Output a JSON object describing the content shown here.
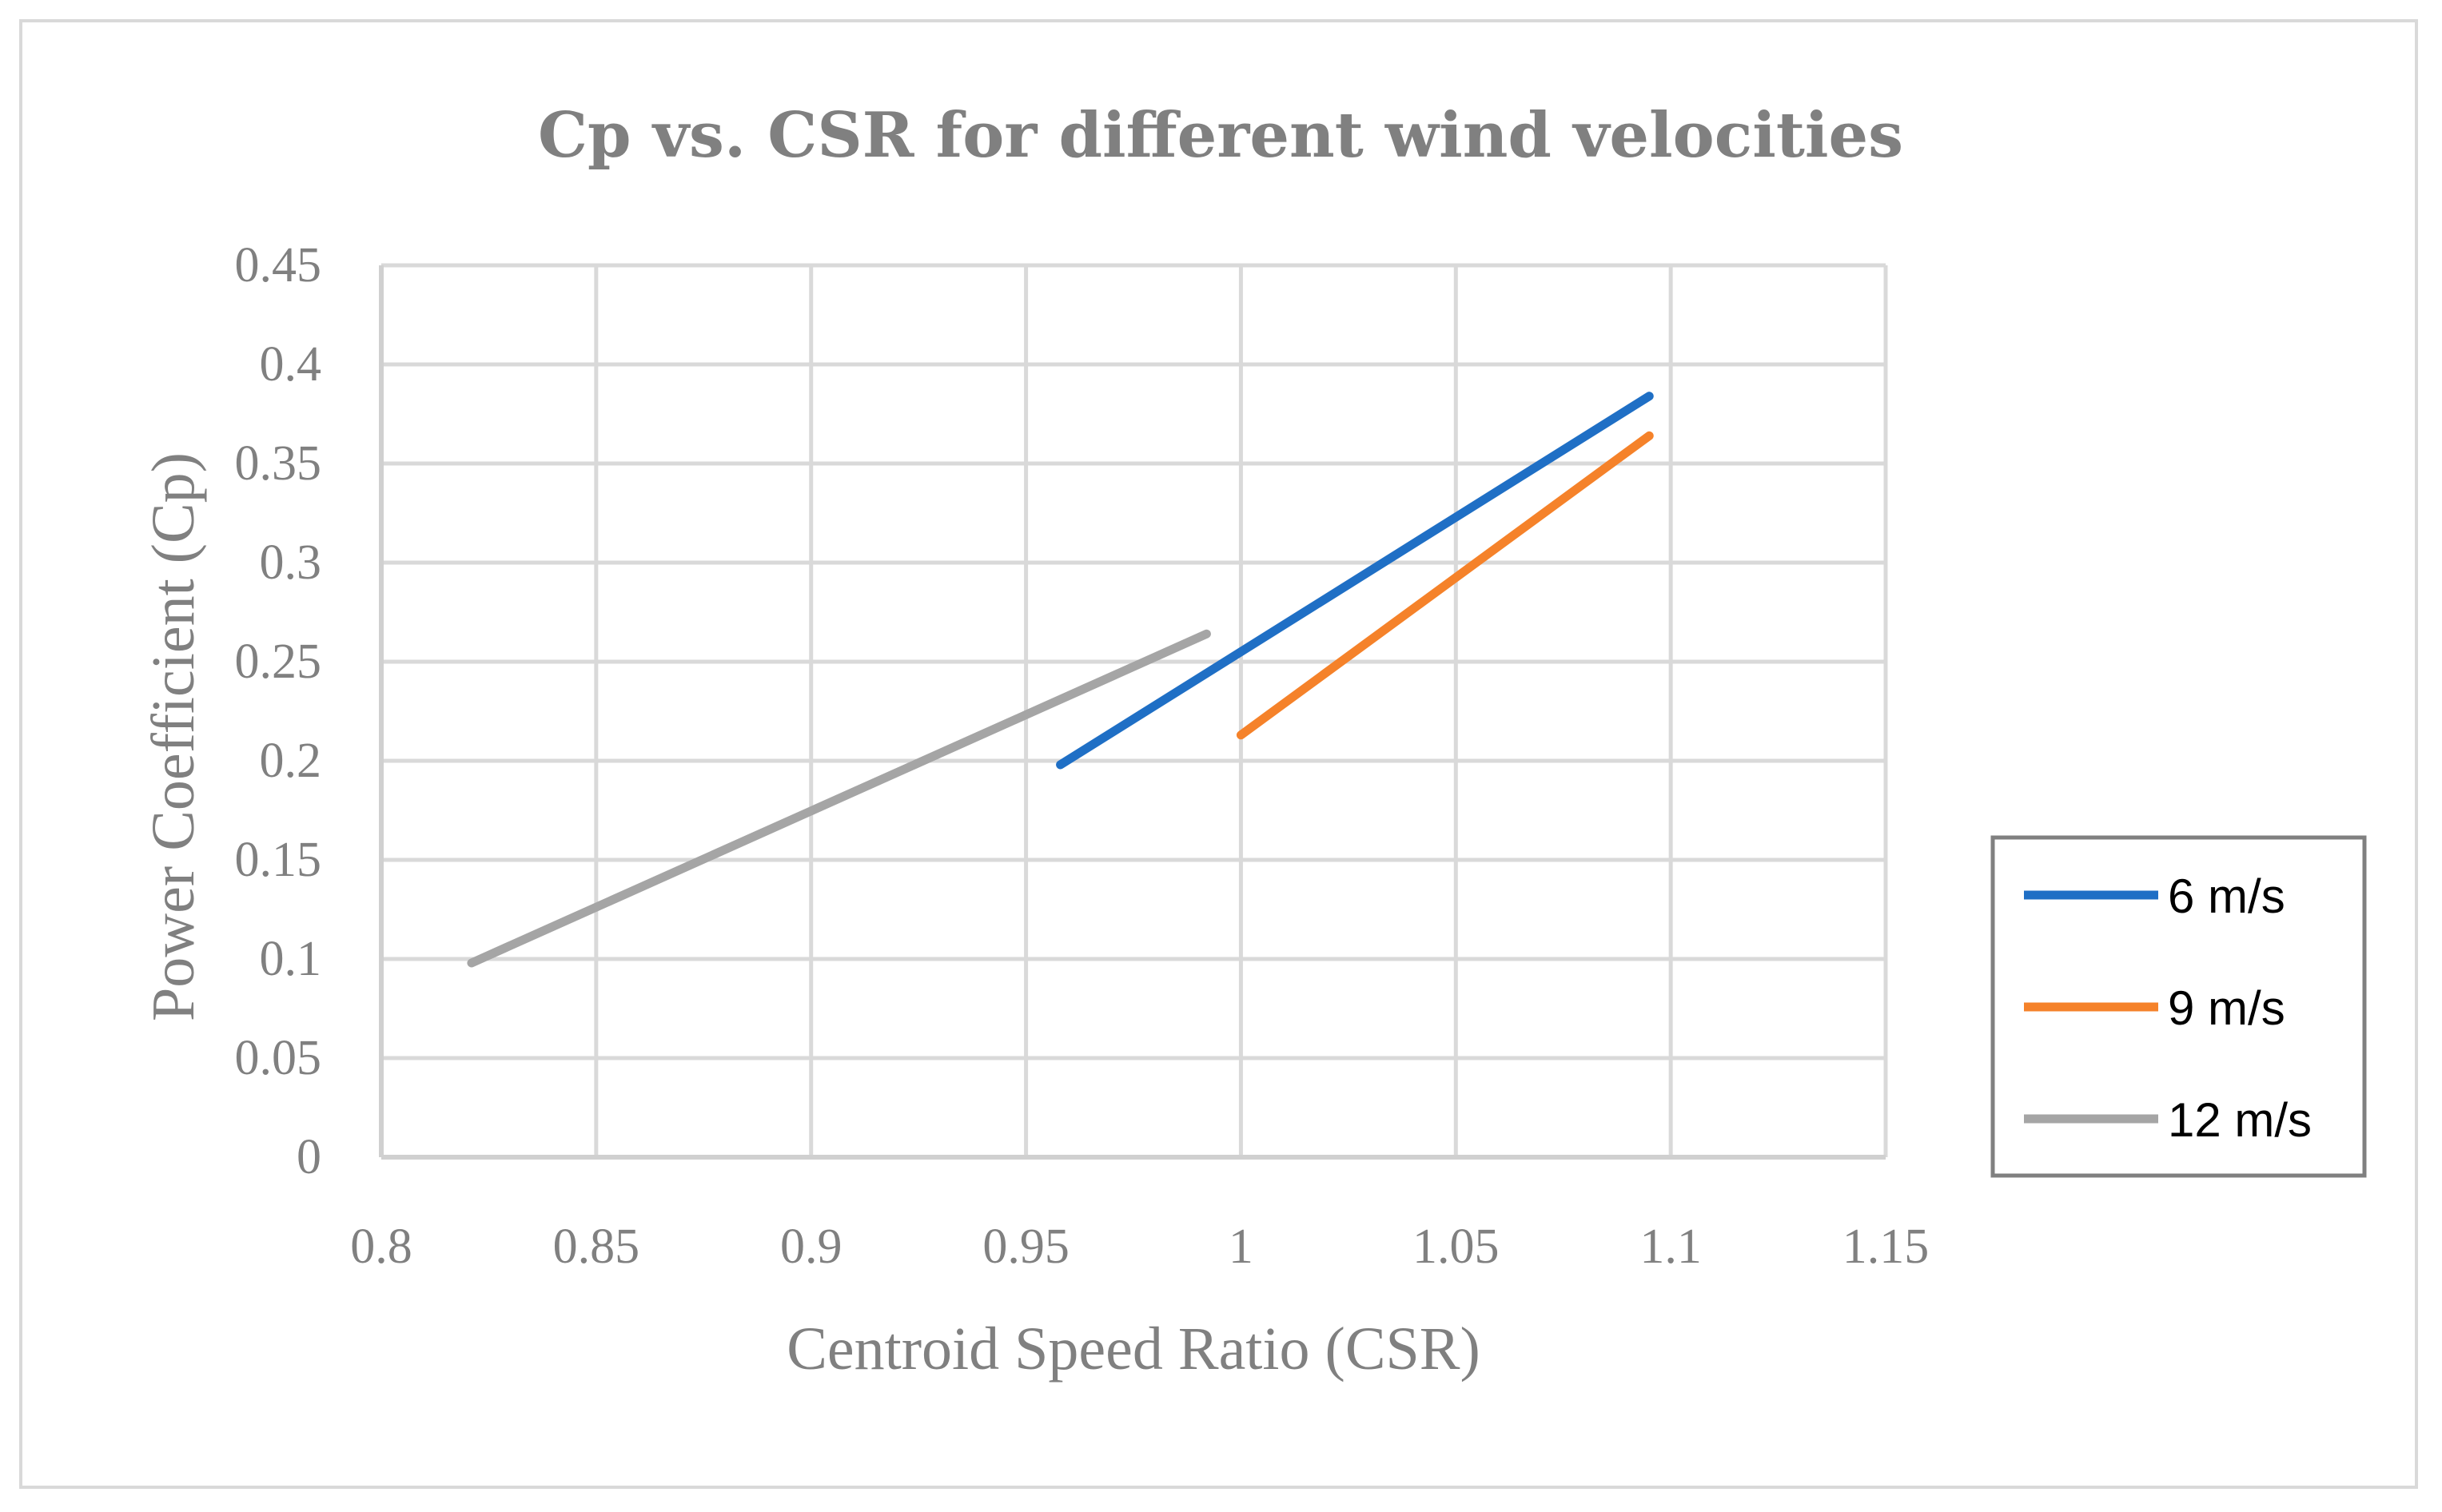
{
  "chart_data": {
    "type": "line",
    "title": "Cp vs. CSR for different wind velocities",
    "xlabel": "Centroid Speed Ratio (CSR)",
    "ylabel": "Power Coefficient (Cp)",
    "xlim": [
      0.8,
      1.15
    ],
    "ylim": [
      0,
      0.45
    ],
    "x_ticks": [
      "0.8",
      "0.85",
      "0.9",
      "0.95",
      "1",
      "1.05",
      "1.1",
      "1.15"
    ],
    "y_ticks": [
      "0",
      "0.05",
      "0.1",
      "0.15",
      "0.2",
      "0.25",
      "0.3",
      "0.35",
      "0.4",
      "0.45"
    ],
    "grid": true,
    "legend_position": "right",
    "series": [
      {
        "name": "6 m/s",
        "color": "#1f6fc5",
        "points": [
          [
            0.958,
            0.198
          ],
          [
            1.095,
            0.384
          ]
        ]
      },
      {
        "name": "9 m/s",
        "color": "#f5822a",
        "points": [
          [
            1.0,
            0.213
          ],
          [
            1.095,
            0.364
          ]
        ]
      },
      {
        "name": "12 m/s",
        "color": "#a5a5a5",
        "points": [
          [
            0.821,
            0.098
          ],
          [
            0.992,
            0.264
          ]
        ]
      }
    ]
  }
}
